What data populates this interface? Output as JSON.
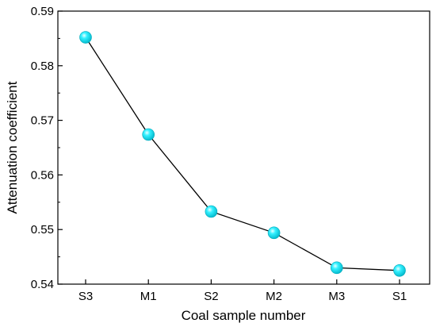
{
  "chart_data": {
    "type": "line",
    "title": "",
    "xlabel": "Coal sample number",
    "ylabel": "Attenuation coefficient",
    "categories": [
      "S3",
      "M1",
      "S2",
      "M2",
      "M3",
      "S1"
    ],
    "series": [
      {
        "values": [
          0.5852,
          0.5674,
          0.5533,
          0.5494,
          0.543,
          0.5425
        ],
        "color": "#00e0ee",
        "line_color": "#000000",
        "marker": "circle"
      }
    ],
    "ylim": [
      0.54,
      0.59
    ],
    "yticks": [
      "0.54",
      "0.55",
      "0.56",
      "0.57",
      "0.58",
      "0.59"
    ],
    "grid": false,
    "legend": "none"
  }
}
